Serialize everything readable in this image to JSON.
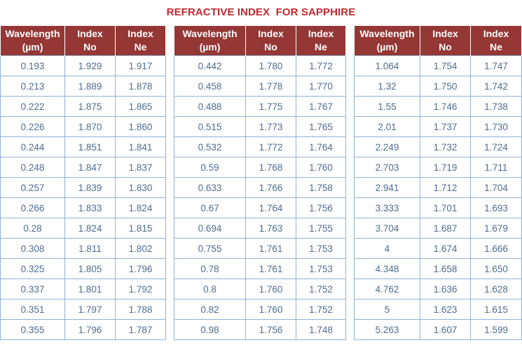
{
  "title": "REFRACTIVE INDEX  FOR SAPPHIRE",
  "headers": {
    "wavelength": "Wavelength\n(µm)",
    "no": "Index\nNo",
    "ne": "Index\nNe"
  },
  "colors": {
    "title": "#c0282e",
    "header_bg": "#953735",
    "header_text": "#ffffff",
    "cell_text": "#4f6c8e",
    "cell_border": "#8fb3d6"
  },
  "tables": [
    {
      "rows": [
        [
          "0.193",
          "1.929",
          "1.917"
        ],
        [
          "0.213",
          "1.889",
          "1.878"
        ],
        [
          "0.222",
          "1.875",
          "1.865"
        ],
        [
          "0.226",
          "1.870",
          "1.860"
        ],
        [
          "0.244",
          "1.851",
          "1.841"
        ],
        [
          "0.248",
          "1.847",
          "1.837"
        ],
        [
          "0.257",
          "1.839",
          "1.830"
        ],
        [
          "0.266",
          "1.833",
          "1.824"
        ],
        [
          "0.28",
          "1.824",
          "1.815"
        ],
        [
          "0.308",
          "1.811",
          "1.802"
        ],
        [
          "0.325",
          "1.805",
          "1.796"
        ],
        [
          "0.337",
          "1.801",
          "1.792"
        ],
        [
          "0.351",
          "1.797",
          "1.788"
        ],
        [
          "0.355",
          "1.796",
          "1.787"
        ]
      ]
    },
    {
      "rows": [
        [
          "0.442",
          "1.780",
          "1.772"
        ],
        [
          "0.458",
          "1.778",
          "1.770"
        ],
        [
          "0.488",
          "1.775",
          "1.767"
        ],
        [
          "0.515",
          "1.773",
          "1.765"
        ],
        [
          "0.532",
          "1.772",
          "1.764"
        ],
        [
          "0.59",
          "1.768",
          "1.760"
        ],
        [
          "0.633",
          "1.766",
          "1.758"
        ],
        [
          "0.67",
          "1.764",
          "1.756"
        ],
        [
          "0.694",
          "1.763",
          "1.755"
        ],
        [
          "0.755",
          "1.761",
          "1.753"
        ],
        [
          "0.78",
          "1.761",
          "1.753"
        ],
        [
          "0.8",
          "1.760",
          "1.752"
        ],
        [
          "0.82",
          "1.760",
          "1.752"
        ],
        [
          "0.98",
          "1.756",
          "1.748"
        ]
      ]
    },
    {
      "rows": [
        [
          "1.064",
          "1.754",
          "1.747"
        ],
        [
          "1.32",
          "1.750",
          "1.742"
        ],
        [
          "1.55",
          "1.746",
          "1.738"
        ],
        [
          "2.01",
          "1.737",
          "1.730"
        ],
        [
          "2.249",
          "1.732",
          "1.724"
        ],
        [
          "2.703",
          "1.719",
          "1.711"
        ],
        [
          "2.941",
          "1.712",
          "1.704"
        ],
        [
          "3.333",
          "1.701",
          "1.693"
        ],
        [
          "3.704",
          "1.687",
          "1.679"
        ],
        [
          "4",
          "1.674",
          "1.666"
        ],
        [
          "4.348",
          "1.658",
          "1.650"
        ],
        [
          "4.762",
          "1.636",
          "1.628"
        ],
        [
          "5",
          "1.623",
          "1.615"
        ],
        [
          "5.263",
          "1.607",
          "1.599"
        ]
      ]
    }
  ]
}
